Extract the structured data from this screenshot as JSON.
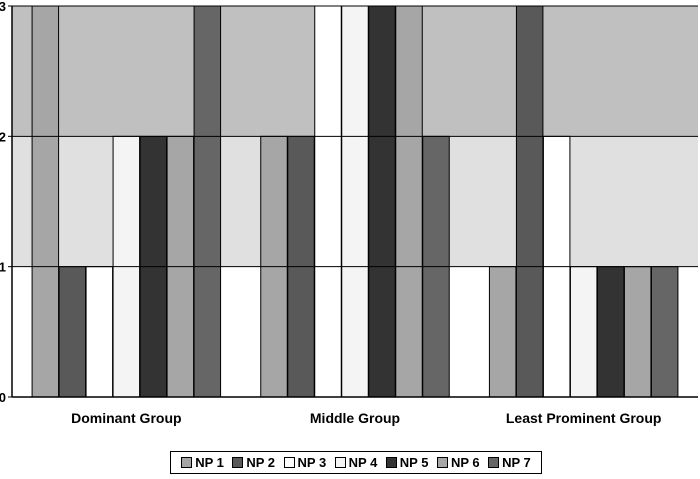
{
  "chart_data": {
    "type": "bar",
    "categories": [
      "Dominant Group",
      "Middle Group",
      "Least Prominent Group"
    ],
    "series": [
      {
        "name": "NP 1",
        "color": "#a6a6a6",
        "values": [
          3,
          2,
          1
        ]
      },
      {
        "name": "NP 2",
        "color": "#595959",
        "values": [
          1,
          2,
          3
        ]
      },
      {
        "name": "NP 3",
        "color": "#ffffff",
        "values": [
          1,
          3,
          2
        ]
      },
      {
        "name": "NP 4",
        "color": "#f4f4f4",
        "values": [
          2,
          3,
          1
        ]
      },
      {
        "name": "NP 5",
        "color": "#333333",
        "values": [
          2,
          3,
          1
        ]
      },
      {
        "name": "NP 6",
        "color": "#a6a6a6",
        "values": [
          2,
          3,
          1
        ]
      },
      {
        "name": "NP 7",
        "color": "#666666",
        "values": [
          3,
          2,
          1
        ]
      }
    ],
    "yticks": [
      "0",
      "1",
      "2",
      "3"
    ],
    "ylim": [
      0,
      3
    ],
    "bands": [
      {
        "from": 0,
        "to": 1,
        "color": "#ffffff"
      },
      {
        "from": 1,
        "to": 2,
        "color": "#e0e0e0"
      },
      {
        "from": 2,
        "to": 3,
        "color": "#c0c0c0"
      }
    ],
    "legend_position": "bottom",
    "title": "",
    "xlabel": "",
    "ylabel": ""
  }
}
